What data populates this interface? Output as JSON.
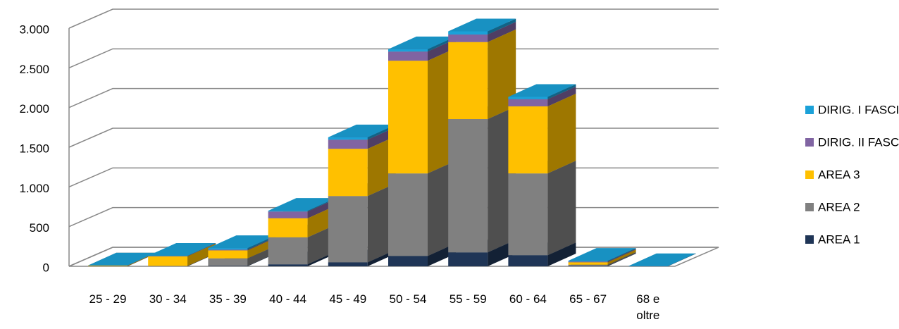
{
  "chart_data": {
    "type": "bar3d_stacked",
    "categories": [
      "25 - 29",
      "30 - 34",
      "35 - 39",
      "40 - 44",
      "45 - 49",
      "50 - 54",
      "55 - 59",
      "60 - 64",
      "65 - 67",
      "68 e oltre"
    ],
    "series": [
      {
        "name": "AREA 1",
        "color": "#1f3556",
        "values": [
          0,
          0,
          5,
          25,
          50,
          130,
          175,
          140,
          5,
          0
        ]
      },
      {
        "name": "AREA 2",
        "color": "#808080",
        "values": [
          2,
          5,
          95,
          340,
          835,
          1040,
          1680,
          1030,
          15,
          0
        ]
      },
      {
        "name": "AREA 3",
        "color": "#ffc000",
        "values": [
          8,
          120,
          100,
          240,
          595,
          1420,
          970,
          845,
          30,
          0
        ]
      },
      {
        "name": "DIRIG. II FASCIA",
        "color": "#8064a2",
        "values": [
          0,
          5,
          10,
          85,
          115,
          115,
          95,
          90,
          10,
          0
        ]
      },
      {
        "name": "DIRIG. I FASCIA",
        "color": "#1ba1d8",
        "values": [
          1,
          3,
          20,
          10,
          30,
          30,
          40,
          30,
          10,
          2
        ]
      }
    ],
    "ylim": [
      0,
      3000
    ],
    "yticks": [
      0,
      500,
      {
        "value": 1000,
        "label": "1.000"
      },
      {
        "value": 1500,
        "label": "1.500"
      },
      {
        "value": 2000,
        "label": "2.000"
      },
      {
        "value": 2500,
        "label": "2.500"
      },
      {
        "value": 3000,
        "label": "3.000"
      }
    ],
    "grid": true,
    "legend": "right"
  }
}
